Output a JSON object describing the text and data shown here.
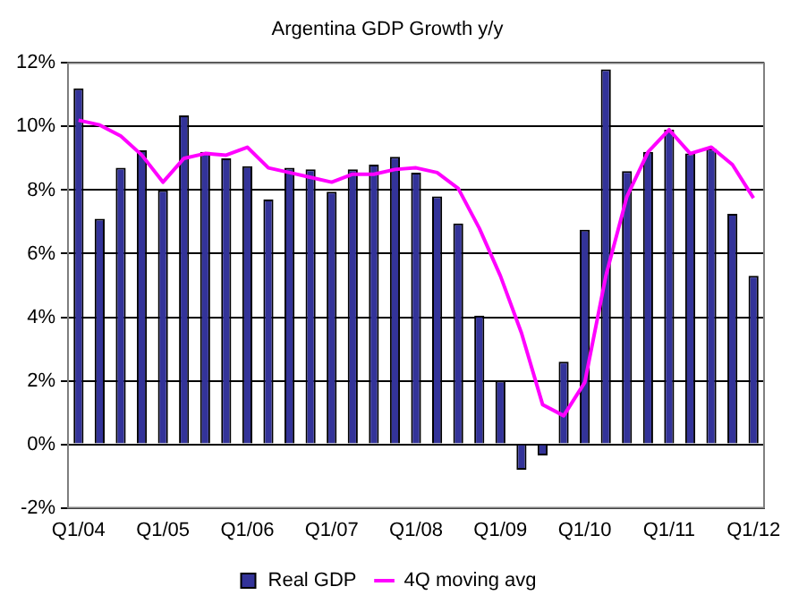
{
  "chart_data": {
    "type": "bar",
    "title": "Argentina GDP Growth y/y",
    "categories": [
      "Q1/04",
      null,
      null,
      null,
      "Q1/05",
      null,
      null,
      null,
      "Q1/06",
      null,
      null,
      null,
      "Q1/07",
      null,
      null,
      null,
      "Q1/08",
      null,
      null,
      null,
      "Q1/09",
      null,
      null,
      null,
      "Q1/10",
      null,
      null,
      null,
      "Q1/11",
      null,
      null,
      null,
      "Q1/12"
    ],
    "series": [
      {
        "name": "Real GDP",
        "color": "#333399",
        "values": [
          11.2,
          7.1,
          8.7,
          9.25,
          8.0,
          10.35,
          9.2,
          9.0,
          8.75,
          7.7,
          8.7,
          8.65,
          7.95,
          8.65,
          8.8,
          9.05,
          8.55,
          7.8,
          6.95,
          4.05,
          2.0,
          -0.8,
          -0.35,
          2.6,
          6.75,
          11.8,
          8.6,
          9.2,
          9.9,
          9.15,
          9.3,
          7.25,
          5.3
        ]
      },
      {
        "name": "4Q moving avg",
        "type": "line",
        "color": "#ff00ff",
        "values": [
          10.2,
          10.05,
          9.7,
          9.1,
          8.25,
          9.0,
          9.15,
          9.1,
          9.35,
          8.7,
          8.55,
          8.4,
          8.25,
          8.5,
          8.5,
          8.65,
          8.7,
          8.55,
          8.05,
          6.8,
          5.3,
          3.5,
          1.25,
          0.9,
          1.95,
          5.3,
          7.8,
          9.2,
          9.9,
          9.15,
          9.35,
          8.8,
          7.75
        ]
      }
    ],
    "ylim": [
      -2,
      12
    ],
    "yticks": [
      {
        "value": -2,
        "label": "-2%"
      },
      {
        "value": 0,
        "label": "0%"
      },
      {
        "value": 2,
        "label": "2%"
      },
      {
        "value": 4,
        "label": "4%"
      },
      {
        "value": 6,
        "label": "6%"
      },
      {
        "value": 8,
        "label": "8%"
      },
      {
        "value": 10,
        "label": "10%"
      },
      {
        "value": 12,
        "label": "12%"
      }
    ],
    "grid": "y",
    "legend": "bottom",
    "marker": "none",
    "line_style": "solid"
  }
}
